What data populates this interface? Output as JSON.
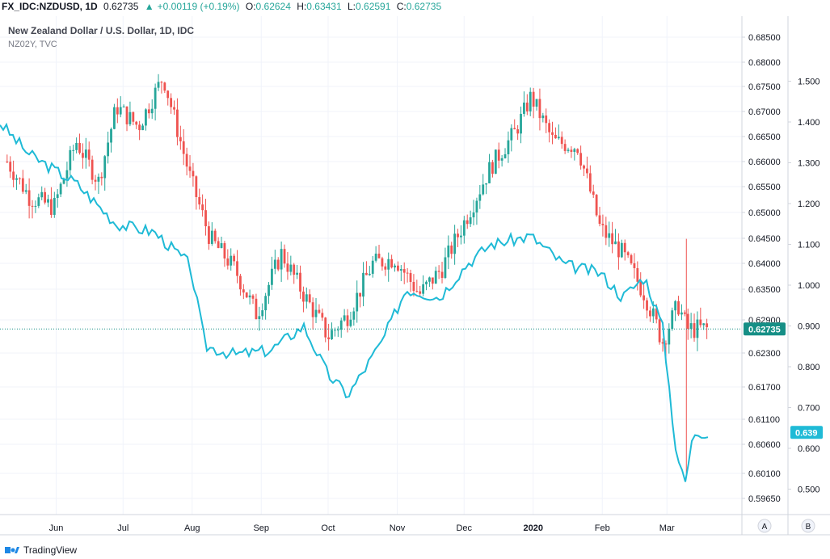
{
  "header": {
    "symbol": "FX_IDC:NZDUSD, 1D",
    "last": "0.62735",
    "change": "+0.00119 (+0.19%)",
    "o_label": "O:",
    "o_value": "0.62624",
    "h_label": "H:",
    "h_value": "0.63431",
    "l_label": "L:",
    "l_value": "0.62591",
    "c_label": "C:",
    "c_value": "0.62735"
  },
  "legend": {
    "main_series": "New Zealand Dollar / U.S. Dollar, 1D, IDC",
    "overlay_series": "NZ02Y, TVC"
  },
  "footer": {
    "brand": "TradingView"
  },
  "axis_buttons": {
    "a": "A",
    "b": "B"
  },
  "colors": {
    "up": "#26a69a",
    "down": "#ef5350",
    "overlay": "#1fbad6",
    "last_price_bg": "#168f86",
    "overlay_bg": "#1fbad6",
    "grid": "#f0f3fa"
  },
  "chart_data": {
    "type": "line",
    "x_tick_labels": [
      "Jun",
      "Jul",
      "Aug",
      "Sep",
      "Oct",
      "Nov",
      "Dec",
      "2020",
      "Feb",
      "Mar"
    ],
    "left_axis_ticks": [
      "0.59650",
      "0.60100",
      "0.60600",
      "0.61100",
      "0.61700",
      "0.62300",
      "0.62900",
      "0.63500",
      "0.64000",
      "0.64500",
      "0.65000",
      "0.65500",
      "0.66000",
      "0.66500",
      "0.67000",
      "0.67500",
      "0.68000",
      "0.68500"
    ],
    "right_axis_ticks": [
      "0.500",
      "0.600",
      "0.700",
      "0.800",
      "0.900",
      "1.000",
      "1.100",
      "1.200",
      "1.300",
      "1.400",
      "1.500"
    ],
    "last_price_label": "0.62735",
    "overlay_last_label": "0.639",
    "last_price": 0.62735,
    "overlay_last": 0.639,
    "nzdusd_close_approx": [
      {
        "date": "2019-05-10",
        "value": 0.66
      },
      {
        "date": "2019-05-20",
        "value": 0.653
      },
      {
        "date": "2019-05-31",
        "value": 0.651
      },
      {
        "date": "2019-06-10",
        "value": 0.664
      },
      {
        "date": "2019-06-20",
        "value": 0.656
      },
      {
        "date": "2019-06-28",
        "value": 0.671
      },
      {
        "date": "2019-07-08",
        "value": 0.667
      },
      {
        "date": "2019-07-19",
        "value": 0.677
      },
      {
        "date": "2019-07-31",
        "value": 0.657
      },
      {
        "date": "2019-08-09",
        "value": 0.645
      },
      {
        "date": "2019-08-20",
        "value": 0.639
      },
      {
        "date": "2019-08-30",
        "value": 0.63
      },
      {
        "date": "2019-09-10",
        "value": 0.642
      },
      {
        "date": "2019-09-20",
        "value": 0.634
      },
      {
        "date": "2019-10-01",
        "value": 0.626
      },
      {
        "date": "2019-10-10",
        "value": 0.63
      },
      {
        "date": "2019-10-21",
        "value": 0.64
      },
      {
        "date": "2019-10-31",
        "value": 0.641
      },
      {
        "date": "2019-11-11",
        "value": 0.634
      },
      {
        "date": "2019-11-21",
        "value": 0.639
      },
      {
        "date": "2019-12-02",
        "value": 0.649
      },
      {
        "date": "2019-12-13",
        "value": 0.659
      },
      {
        "date": "2019-12-24",
        "value": 0.666
      },
      {
        "date": "2019-12-31",
        "value": 0.673
      },
      {
        "date": "2020-01-10",
        "value": 0.664
      },
      {
        "date": "2020-01-21",
        "value": 0.663
      },
      {
        "date": "2020-01-31",
        "value": 0.647
      },
      {
        "date": "2020-02-10",
        "value": 0.642
      },
      {
        "date": "2020-02-20",
        "value": 0.634
      },
      {
        "date": "2020-02-28",
        "value": 0.625
      },
      {
        "date": "2020-03-06",
        "value": 0.632
      },
      {
        "date": "2020-03-10",
        "value": 0.62735
      }
    ],
    "nz02y_approx": [
      {
        "date": "2019-05-03",
        "value": 1.42
      },
      {
        "date": "2019-05-20",
        "value": 1.32
      },
      {
        "date": "2019-06-10",
        "value": 1.25
      },
      {
        "date": "2019-06-28",
        "value": 1.15
      },
      {
        "date": "2019-07-15",
        "value": 1.13
      },
      {
        "date": "2019-07-31",
        "value": 1.05
      },
      {
        "date": "2019-08-07",
        "value": 0.85
      },
      {
        "date": "2019-08-20",
        "value": 0.83
      },
      {
        "date": "2019-09-05",
        "value": 0.84
      },
      {
        "date": "2019-09-20",
        "value": 0.9
      },
      {
        "date": "2019-10-01",
        "value": 0.78
      },
      {
        "date": "2019-10-10",
        "value": 0.73
      },
      {
        "date": "2019-10-25",
        "value": 0.86
      },
      {
        "date": "2019-11-05",
        "value": 0.99
      },
      {
        "date": "2019-11-20",
        "value": 0.97
      },
      {
        "date": "2019-12-02",
        "value": 1.05
      },
      {
        "date": "2019-12-13",
        "value": 1.1
      },
      {
        "date": "2019-12-31",
        "value": 1.12
      },
      {
        "date": "2020-01-15",
        "value": 1.05
      },
      {
        "date": "2020-01-31",
        "value": 1.03
      },
      {
        "date": "2020-02-10",
        "value": 0.97
      },
      {
        "date": "2020-02-20",
        "value": 1.02
      },
      {
        "date": "2020-02-28",
        "value": 0.9
      },
      {
        "date": "2020-03-05",
        "value": 0.6
      },
      {
        "date": "2020-03-09",
        "value": 0.51
      },
      {
        "date": "2020-03-13",
        "value": 0.639
      }
    ]
  }
}
